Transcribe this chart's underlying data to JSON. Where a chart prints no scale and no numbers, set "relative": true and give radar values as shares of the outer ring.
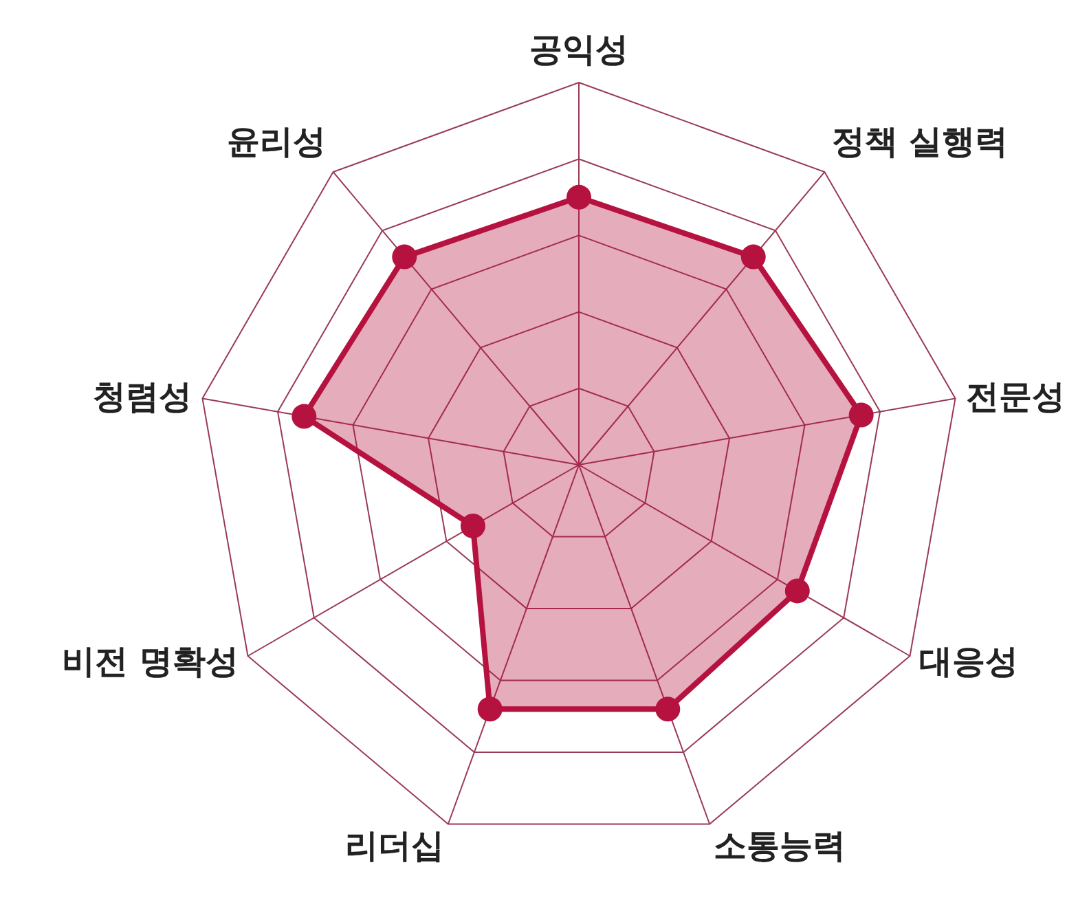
{
  "chart_data": {
    "type": "radar",
    "relative": true,
    "grid": true,
    "marker": "circle",
    "categories": [
      "공익성",
      "정책 실행력",
      "전문성",
      "대응성",
      "소통능력",
      "리더십",
      "비전 명확성",
      "청렴성",
      "윤리성"
    ],
    "series": [
      {
        "color": "#b5123f",
        "values": [
          0.7,
          0.71,
          0.75,
          0.66,
          0.68,
          0.68,
          0.32,
          0.73,
          0.71
        ]
      }
    ]
  }
}
